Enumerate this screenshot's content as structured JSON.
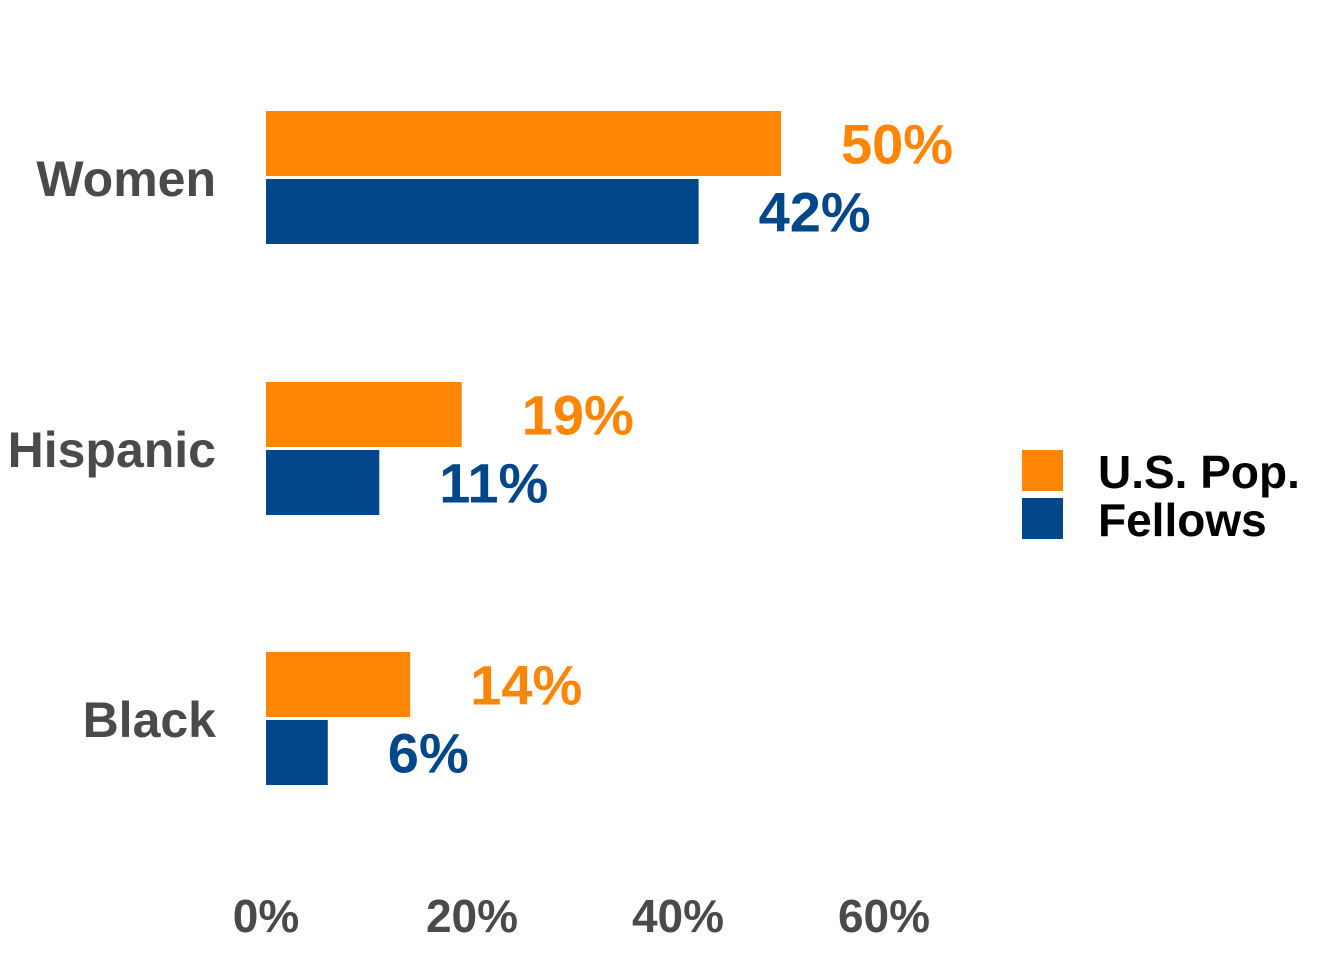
{
  "chart_data": {
    "type": "bar",
    "orientation": "horizontal",
    "categories": [
      "Women",
      "Hispanic",
      "Black"
    ],
    "series": [
      {
        "name": "U.S. Pop.",
        "values": [
          50,
          19,
          14
        ],
        "labels": [
          "50%",
          "19%",
          "14%"
        ],
        "color": "#FF8505"
      },
      {
        "name": "Fellows",
        "values": [
          42,
          11,
          6
        ],
        "labels": [
          "42%",
          "11%",
          "6%"
        ],
        "color": "#02478A"
      }
    ],
    "xlim": [
      0,
      60
    ],
    "x_ticks": [
      0,
      20,
      40,
      60
    ],
    "x_tick_labels": [
      "0%",
      "20%",
      "40%",
      "60%"
    ],
    "grid": false,
    "legend_position": "right",
    "legend": [
      "U.S. Pop.",
      "Fellows"
    ],
    "title": "",
    "xlabel": "",
    "ylabel": ""
  }
}
